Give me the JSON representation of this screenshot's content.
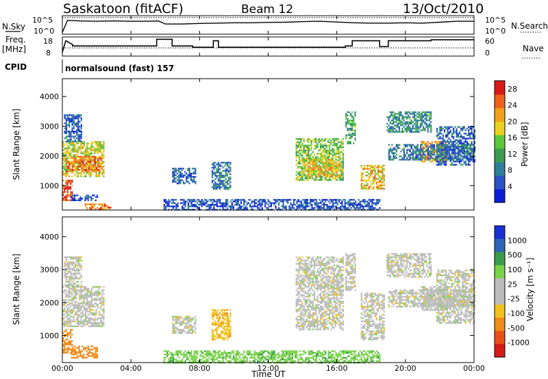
{
  "header": {
    "station": "Saskatoon (fitACF)",
    "beam": "Beam 12",
    "date": "13/Oct/2010"
  },
  "left_labels": {
    "nsky": "N.Sky",
    "freq_line1": "Freq.",
    "freq_line2": "[MHz]",
    "cpid": "CPID"
  },
  "right_labels": {
    "nsearch": "N.Search",
    "nave": "Nave"
  },
  "cpid_text": "normalsound (fast) 157",
  "x_axis_title": "Time UT",
  "colors": {
    "power_scale": [
      "#0b1fd6",
      "#2a53c7",
      "#2e7f9a",
      "#3a9c55",
      "#5cc93a",
      "#e8d21f",
      "#f2a21a",
      "#f0641a",
      "#d81a1a"
    ],
    "velocity_scale": [
      "#1a2fd4",
      "#2e64b8",
      "#3a9c4a",
      "#7ad24a",
      "#bcbcbc",
      "#bcbcbc",
      "#f2c21a",
      "#f08a1a",
      "#e8501a",
      "#d81a1a"
    ]
  },
  "chart_data": [
    {
      "type": "line",
      "panel": "noise",
      "left_ticks": [
        "10^5",
        "10^0"
      ],
      "right_ticks": [
        "10^5",
        "10^0"
      ],
      "series": [
        {
          "name": "N.Sky",
          "x": [
            0,
            0.3,
            1,
            2,
            3,
            4,
            5,
            5.6,
            6,
            7,
            8,
            9,
            10,
            11,
            12,
            13,
            14,
            15,
            16,
            17,
            18,
            19,
            20,
            21,
            22,
            23,
            24
          ],
          "values": [
            0.1,
            0.75,
            0.72,
            0.7,
            0.72,
            0.7,
            0.7,
            0.72,
            0.55,
            0.55,
            0.58,
            0.6,
            0.62,
            0.62,
            0.64,
            0.65,
            0.68,
            0.7,
            0.66,
            0.62,
            0.6,
            0.6,
            0.62,
            0.6,
            0.65,
            0.7,
            0.7
          ]
        },
        {
          "name": "N.Search",
          "x": [
            0,
            24
          ],
          "values": [
            0.9,
            0.9
          ]
        }
      ]
    },
    {
      "type": "line",
      "panel": "frequency",
      "left_ticks": [
        "18",
        "8"
      ],
      "right_ticks": [
        "60",
        "0"
      ],
      "series": [
        {
          "name": "Freq",
          "x": [
            0,
            0.2,
            0.6,
            0.6,
            5.5,
            5.5,
            6.4,
            6.4,
            7.6,
            7.6,
            8.8,
            8.8,
            9.1,
            9.1,
            16.5,
            16.5,
            16.9,
            16.9,
            18.5,
            18.5,
            19.0,
            19.0,
            21.5,
            21.5,
            24
          ],
          "values": [
            10,
            16,
            14,
            13.3,
            13.3,
            16.8,
            16.8,
            13.3,
            13.3,
            12.6,
            12.6,
            16.0,
            16.0,
            12.6,
            12.6,
            13.3,
            13.3,
            16.0,
            16.0,
            13.0,
            13.0,
            16.0,
            16.0,
            16.5,
            16.5
          ]
        },
        {
          "name": "Nave",
          "x": [
            0,
            24
          ],
          "values": [
            12.3,
            12.3
          ]
        }
      ]
    },
    {
      "type": "heatmap",
      "panel": "power",
      "x_ticks": [
        "00:00",
        "04:00",
        "08:00",
        "12:00",
        "16:00",
        "20:00",
        "00:00"
      ],
      "y_ticks": [
        "1000",
        "2000",
        "3000",
        "4000"
      ],
      "ylabel": "Slant Range [km]",
      "ylim": [
        180,
        4600
      ],
      "xlim": [
        0,
        24
      ],
      "colorbar": {
        "label": "Power [dB]",
        "ticks": [
          "4",
          "8",
          "12",
          "16",
          "20",
          "24",
          "28"
        ],
        "range": [
          0,
          30
        ]
      },
      "regions": [
        {
          "t0": 0.0,
          "t1": 2.4,
          "r0": 1300,
          "r1": 2500,
          "v": 18
        },
        {
          "t0": 0.2,
          "t1": 2.3,
          "r0": 1500,
          "r1": 2000,
          "v": 24
        },
        {
          "t0": 0.1,
          "t1": 1.1,
          "r0": 2500,
          "r1": 3400,
          "v": 6
        },
        {
          "t0": 0.0,
          "t1": 0.6,
          "r0": 500,
          "r1": 1200,
          "v": 26
        },
        {
          "t0": 0.5,
          "t1": 2.0,
          "r0": 500,
          "r1": 700,
          "v": 5
        },
        {
          "t0": 1.3,
          "t1": 2.8,
          "r0": 180,
          "r1": 400,
          "v": 24
        },
        {
          "t0": 6.4,
          "t1": 7.8,
          "r0": 1100,
          "r1": 1600,
          "v": 6
        },
        {
          "t0": 8.7,
          "t1": 9.8,
          "r0": 900,
          "r1": 1800,
          "v": 8
        },
        {
          "t0": 5.9,
          "t1": 18.5,
          "r0": 180,
          "r1": 550,
          "v": 5
        },
        {
          "t0": 13.6,
          "t1": 16.4,
          "r0": 1200,
          "r1": 2600,
          "v": 15
        },
        {
          "t0": 14.0,
          "t1": 16.2,
          "r0": 1300,
          "r1": 1900,
          "v": 20
        },
        {
          "t0": 17.4,
          "t1": 18.8,
          "r0": 900,
          "r1": 1700,
          "v": 20
        },
        {
          "t0": 16.5,
          "t1": 17.1,
          "r0": 2400,
          "r1": 3500,
          "v": 12
        },
        {
          "t0": 18.9,
          "t1": 21.5,
          "r0": 2800,
          "r1": 3500,
          "v": 10
        },
        {
          "t0": 20.9,
          "t1": 22.4,
          "r0": 1800,
          "r1": 2500,
          "v": 22
        },
        {
          "t0": 21.8,
          "t1": 24.0,
          "r0": 1700,
          "r1": 3000,
          "v": 6
        },
        {
          "t0": 19.0,
          "t1": 24.0,
          "r0": 1900,
          "r1": 2400,
          "v": 8
        }
      ]
    },
    {
      "type": "heatmap",
      "panel": "velocity",
      "x_ticks": [
        "00:00",
        "04:00",
        "08:00",
        "12:00",
        "16:00",
        "20:00",
        "00:00"
      ],
      "y_ticks": [
        "1000",
        "2000",
        "3000",
        "4000"
      ],
      "ylabel": "Slant Range [km]",
      "ylim": [
        180,
        4600
      ],
      "xlim": [
        0,
        24
      ],
      "colorbar": {
        "label": "Velocity [m s⁻¹]",
        "ticks": [
          "1000",
          "500",
          "100",
          "25",
          "-25",
          "-100",
          "-500",
          "-1000"
        ]
      },
      "regions": [
        {
          "t0": 0.0,
          "t1": 2.4,
          "r0": 1300,
          "r1": 2500,
          "v": 0
        },
        {
          "t0": 0.1,
          "t1": 1.1,
          "r0": 2500,
          "r1": 3400,
          "v": 0
        },
        {
          "t0": 0.0,
          "t1": 0.6,
          "r0": 500,
          "r1": 1200,
          "v": -200
        },
        {
          "t0": 0.5,
          "t1": 2.0,
          "r0": 350,
          "r1": 700,
          "v": -150
        },
        {
          "t0": 6.4,
          "t1": 7.8,
          "r0": 1100,
          "r1": 1600,
          "v": 0
        },
        {
          "t0": 8.7,
          "t1": 9.8,
          "r0": 900,
          "r1": 1800,
          "v": -80
        },
        {
          "t0": 5.9,
          "t1": 18.5,
          "r0": 180,
          "r1": 550,
          "v": 80
        },
        {
          "t0": 13.6,
          "t1": 16.4,
          "r0": 1200,
          "r1": 3400,
          "v": 0
        },
        {
          "t0": 17.4,
          "t1": 18.8,
          "r0": 900,
          "r1": 2300,
          "v": 0
        },
        {
          "t0": 16.5,
          "t1": 17.1,
          "r0": 2400,
          "r1": 3500,
          "v": 0
        },
        {
          "t0": 18.9,
          "t1": 21.5,
          "r0": 2800,
          "r1": 3500,
          "v": 0
        },
        {
          "t0": 20.9,
          "t1": 22.4,
          "r0": 1800,
          "r1": 2500,
          "v": 0
        },
        {
          "t0": 21.8,
          "t1": 24.0,
          "r0": 1400,
          "r1": 3000,
          "v": 0
        },
        {
          "t0": 19.0,
          "t1": 24.0,
          "r0": 1900,
          "r1": 2400,
          "v": 0
        }
      ]
    }
  ]
}
